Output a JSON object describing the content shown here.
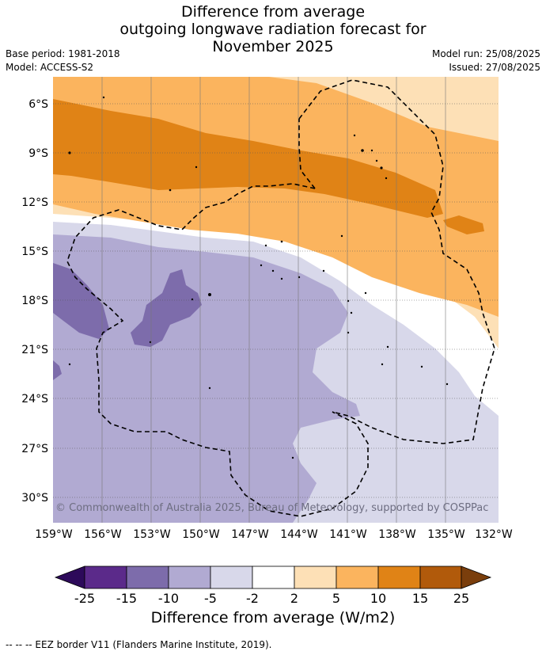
{
  "title": {
    "line1": "Difference from average",
    "line2": "outgoing longwave radiation forecast for",
    "line3": "November 2025"
  },
  "meta": {
    "base_period": "Base period: 1981-2018",
    "model": "Model: ACCESS-S2",
    "model_run": "Model run: 25/08/2025",
    "issued": "Issued: 27/08/2025"
  },
  "map": {
    "lat_labels": [
      "6°S",
      "9°S",
      "12°S",
      "15°S",
      "18°S",
      "21°S",
      "24°S",
      "27°S",
      "30°S"
    ],
    "lon_labels": [
      "159°W",
      "156°W",
      "153°W",
      "150°W",
      "147°W",
      "144°W",
      "141°W",
      "138°W",
      "135°W",
      "132°W"
    ],
    "copyright": "© Commonwealth of Australia 2025, Bureau of Meteorology, supported by COSPPac"
  },
  "colorbar": {
    "ticks": [
      "-25",
      "-15",
      "-10",
      "-5",
      "-2",
      "2",
      "5",
      "10",
      "15",
      "25"
    ],
    "colors": [
      "#2d0a5a",
      "#5b2a8a",
      "#7d6cab",
      "#b1aad2",
      "#d8d8ea",
      "#ffffff",
      "#fde0b6",
      "#fbb45e",
      "#e08316",
      "#b15a0b",
      "#7a3e0c"
    ],
    "title": "Difference from average (W/m2)"
  },
  "footer": "--  --  -- EEZ border V11 (Flanders Marine Institute, 2019)."
}
